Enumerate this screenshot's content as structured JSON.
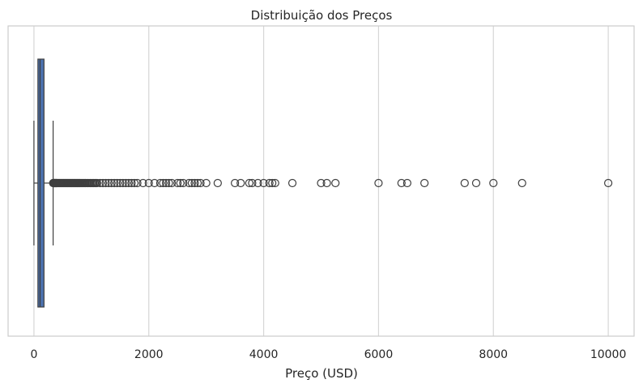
{
  "chart_data": {
    "type": "boxplot",
    "orientation": "horizontal",
    "title": "Distribuição dos Preços",
    "xlabel": "Preço (USD)",
    "ylabel": "",
    "xlim": [
      -450,
      10450
    ],
    "xticks": [
      0,
      2000,
      4000,
      6000,
      8000,
      10000
    ],
    "grid": "vertical",
    "box": {
      "min": 0,
      "q1": 69,
      "median": 106,
      "q3": 175,
      "whisker_high": 334,
      "color": "#4c72b0"
    },
    "outliers": [
      335,
      340,
      345,
      350,
      355,
      360,
      365,
      370,
      375,
      380,
      385,
      390,
      395,
      400,
      410,
      420,
      430,
      440,
      450,
      460,
      470,
      480,
      490,
      500,
      510,
      520,
      530,
      540,
      550,
      560,
      570,
      580,
      590,
      600,
      610,
      620,
      630,
      640,
      650,
      660,
      670,
      680,
      690,
      700,
      710,
      720,
      730,
      740,
      750,
      760,
      770,
      780,
      790,
      800,
      815,
      830,
      845,
      860,
      875,
      890,
      900,
      920,
      940,
      960,
      980,
      1000,
      1020,
      1040,
      1060,
      1080,
      1100,
      1150,
      1200,
      1250,
      1300,
      1350,
      1400,
      1450,
      1500,
      1550,
      1600,
      1650,
      1700,
      1750,
      1800,
      1900,
      2000,
      2100,
      2200,
      2250,
      2300,
      2350,
      2400,
      2500,
      2550,
      2600,
      2700,
      2750,
      2800,
      2850,
      2900,
      3000,
      3200,
      3500,
      3600,
      3750,
      3800,
      3900,
      4000,
      4100,
      4150,
      4200,
      4500,
      5000,
      5100,
      5250,
      6000,
      6400,
      6500,
      6800,
      7500,
      7700,
      8000,
      8500,
      10000
    ]
  }
}
